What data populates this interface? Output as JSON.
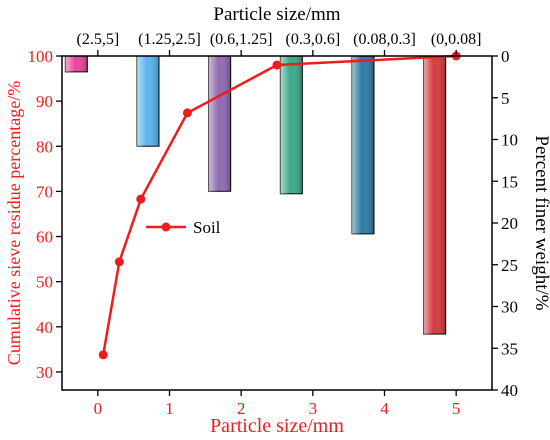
{
  "chart_data": {
    "type": "bar",
    "title": "",
    "top_xlabel": "Particle size/mm",
    "xlabel": "Particle size/mm",
    "ylabel": "Cumulative sieve residue percentage/%",
    "y2label": "Percent finer weight/%",
    "categories": [
      "(2.5,5]",
      "(1.25,2.5]",
      "(0.6,1.25]",
      "(0.3,0.6]",
      "(0.08,0.3]",
      "(0,0.08]"
    ],
    "xlim": [
      -0.5,
      5.5
    ],
    "ylim": [
      26,
      100
    ],
    "y2lim": [
      0,
      40
    ],
    "x_ticks": [
      0,
      1,
      2,
      3,
      4,
      5
    ],
    "y_ticks": [
      30,
      40,
      50,
      60,
      70,
      80,
      90,
      100
    ],
    "y2_ticks": [
      0,
      5,
      10,
      15,
      20,
      25,
      30,
      35,
      40
    ],
    "grid": false,
    "legend_position": "middle-left",
    "series": [
      {
        "name": "",
        "axis": "right",
        "kind": "bar",
        "x": [
          -0.3,
          0.7,
          1.7,
          2.7,
          3.7,
          4.7
        ],
        "values": [
          1.9,
          10.8,
          16.2,
          16.5,
          21.3,
          33.3
        ],
        "colors": [
          "#e8479a",
          "#5ab4ee",
          "#8e6bb0",
          "#3aa98a",
          "#2e7ba6",
          "#d63a40"
        ]
      },
      {
        "name": "Soil",
        "axis": "left",
        "kind": "line",
        "color": "#ee1c1c",
        "x": [
          0.075,
          0.3,
          0.6,
          1.25,
          2.5,
          5
        ],
        "y": [
          33.8,
          54.4,
          68.3,
          87.4,
          98.0,
          100
        ]
      }
    ]
  }
}
